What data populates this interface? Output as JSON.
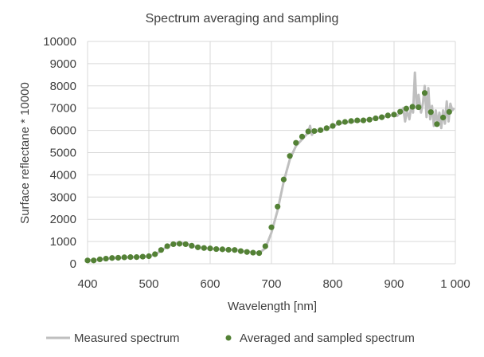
{
  "chart_data": {
    "type": "line",
    "title": "Spectrum averaging and sampling",
    "xlabel": "Wavelength [nm]",
    "ylabel": "Surface reflectane * 10000",
    "xlim": [
      400,
      1000
    ],
    "ylim": [
      0,
      10000
    ],
    "x_ticks": [
      400,
      500,
      600,
      700,
      800,
      900,
      1000
    ],
    "x_tick_labels": [
      "400",
      "500",
      "600",
      "700",
      "800",
      "900",
      "1 000"
    ],
    "y_ticks": [
      0,
      1000,
      2000,
      3000,
      4000,
      5000,
      6000,
      7000,
      8000,
      9000,
      10000
    ],
    "y_tick_labels": [
      "0",
      "1000",
      "2000",
      "3000",
      "4000",
      "5000",
      "6000",
      "7000",
      "8000",
      "9000",
      "10000"
    ],
    "grid": true,
    "legend_position": "bottom",
    "series": [
      {
        "name": "Measured spectrum",
        "kind": "line",
        "color": "#bfbfbf",
        "x": [
          400,
          410,
          420,
          430,
          440,
          450,
          460,
          470,
          480,
          490,
          500,
          510,
          520,
          530,
          540,
          550,
          560,
          570,
          580,
          590,
          600,
          610,
          620,
          630,
          640,
          650,
          660,
          670,
          680,
          690,
          700,
          710,
          720,
          730,
          740,
          750,
          760,
          763,
          766,
          770,
          780,
          790,
          800,
          810,
          820,
          830,
          840,
          850,
          860,
          870,
          880,
          890,
          900,
          905,
          910,
          915,
          918,
          921,
          925,
          928,
          931,
          934,
          937,
          940,
          944,
          947,
          950,
          953,
          956,
          959,
          962,
          965,
          968,
          971,
          974,
          977,
          980,
          983,
          986,
          989,
          992,
          995,
          998
        ],
        "values": [
          150,
          160,
          190,
          220,
          250,
          270,
          280,
          290,
          300,
          320,
          340,
          420,
          580,
          780,
          900,
          930,
          920,
          820,
          740,
          700,
          680,
          660,
          640,
          630,
          620,
          580,
          540,
          510,
          480,
          700,
          1400,
          2400,
          3700,
          4700,
          5300,
          5600,
          5900,
          6200,
          5800,
          5950,
          6000,
          6050,
          6200,
          6300,
          6350,
          6400,
          6400,
          6450,
          6500,
          6550,
          6600,
          6650,
          6700,
          6650,
          6800,
          7000,
          6400,
          6900,
          6500,
          7100,
          6800,
          8600,
          7000,
          7600,
          6800,
          7200,
          8000,
          6600,
          7900,
          6500,
          7100,
          6200,
          6900,
          6300,
          6800,
          6100,
          6900,
          6300,
          7300,
          6400,
          7200,
          6900,
          7000
        ]
      },
      {
        "name": "Averaged and sampled spectrum",
        "kind": "scatter",
        "color": "#538135",
        "x": [
          400,
          410,
          420,
          430,
          440,
          450,
          460,
          470,
          480,
          490,
          500,
          510,
          520,
          530,
          540,
          550,
          560,
          570,
          580,
          590,
          600,
          610,
          620,
          630,
          640,
          650,
          660,
          670,
          680,
          690,
          700,
          710,
          720,
          730,
          740,
          750,
          760,
          770,
          780,
          790,
          800,
          810,
          820,
          830,
          840,
          850,
          860,
          870,
          880,
          890,
          900,
          910,
          920,
          930,
          940,
          950,
          960,
          970,
          980,
          990
        ],
        "values": [
          150,
          150,
          200,
          230,
          260,
          270,
          290,
          300,
          300,
          320,
          340,
          430,
          620,
          790,
          880,
          900,
          880,
          810,
          740,
          710,
          690,
          660,
          650,
          630,
          620,
          570,
          530,
          500,
          480,
          790,
          1640,
          2570,
          3790,
          4850,
          5440,
          5720,
          5950,
          5970,
          6010,
          6100,
          6200,
          6340,
          6380,
          6420,
          6450,
          6450,
          6480,
          6540,
          6590,
          6670,
          6710,
          6840,
          6980,
          7060,
          7040,
          7680,
          6820,
          6280,
          6580,
          6830
        ]
      }
    ]
  }
}
